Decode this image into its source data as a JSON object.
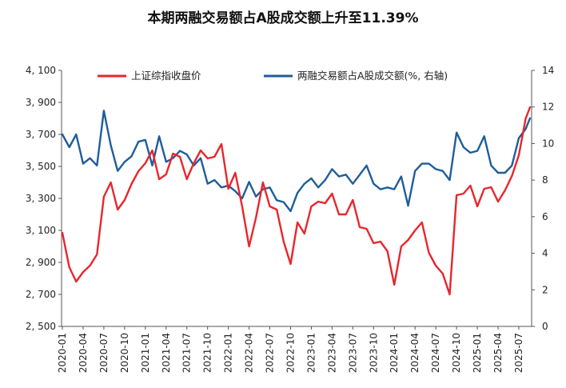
{
  "chart_data": {
    "type": "line",
    "title": "本期两融交易额占A股成交额上升至11.39%",
    "x_ticks": [
      "2020-01",
      "2020-04",
      "2020-07",
      "2020-10",
      "2021-01",
      "2021-04",
      "2021-07",
      "2021-10",
      "2022-01",
      "2022-04",
      "2022-07",
      "2022-10",
      "2023-01",
      "2023-04",
      "2023-07",
      "2023-10",
      "2024-01",
      "2024-04",
      "2024-07",
      "2024-10",
      "2025-01",
      "2025-04",
      "2025-07"
    ],
    "y_left": {
      "lim": [
        2500,
        4100
      ],
      "ticks": [
        "2, 500",
        "2, 700",
        "2, 900",
        "3, 100",
        "3, 300",
        "3, 500",
        "3, 700",
        "3, 900",
        "4, 100"
      ]
    },
    "y_right": {
      "lim": [
        0,
        14
      ],
      "ticks": [
        "0",
        "2",
        "4",
        "6",
        "8",
        "10",
        "12",
        "14"
      ]
    },
    "legend_position": "top",
    "series": [
      {
        "name": "上证综指收盘价",
        "axis": "left",
        "color": "#e8262c",
        "points": [
          [
            "2020-01",
            3085
          ],
          [
            "2020-02",
            2870
          ],
          [
            "2020-03",
            2780
          ],
          [
            "2020-04",
            2840
          ],
          [
            "2020-05",
            2880
          ],
          [
            "2020-06",
            2950
          ],
          [
            "2020-07",
            3310
          ],
          [
            "2020-08",
            3400
          ],
          [
            "2020-09",
            3230
          ],
          [
            "2020-10",
            3290
          ],
          [
            "2020-11",
            3390
          ],
          [
            "2020-12",
            3470
          ],
          [
            "2021-01",
            3520
          ],
          [
            "2021-02",
            3600
          ],
          [
            "2021-03",
            3420
          ],
          [
            "2021-04",
            3450
          ],
          [
            "2021-05",
            3580
          ],
          [
            "2021-06",
            3560
          ],
          [
            "2021-07",
            3420
          ],
          [
            "2021-08",
            3520
          ],
          [
            "2021-09",
            3600
          ],
          [
            "2021-10",
            3550
          ],
          [
            "2021-11",
            3560
          ],
          [
            "2021-12",
            3640
          ],
          [
            "2022-01",
            3360
          ],
          [
            "2022-02",
            3460
          ],
          [
            "2022-03",
            3250
          ],
          [
            "2022-04",
            3000
          ],
          [
            "2022-05",
            3180
          ],
          [
            "2022-06",
            3400
          ],
          [
            "2022-07",
            3250
          ],
          [
            "2022-08",
            3230
          ],
          [
            "2022-09",
            3030
          ],
          [
            "2022-10",
            2890
          ],
          [
            "2022-11",
            3150
          ],
          [
            "2022-12",
            3080
          ],
          [
            "2023-01",
            3250
          ],
          [
            "2023-02",
            3280
          ],
          [
            "2023-03",
            3270
          ],
          [
            "2023-04",
            3330
          ],
          [
            "2023-05",
            3200
          ],
          [
            "2023-06",
            3200
          ],
          [
            "2023-07",
            3290
          ],
          [
            "2023-08",
            3120
          ],
          [
            "2023-09",
            3110
          ],
          [
            "2023-10",
            3020
          ],
          [
            "2023-11",
            3030
          ],
          [
            "2023-12",
            2970
          ],
          [
            "2024-01",
            2760
          ],
          [
            "2024-02",
            3000
          ],
          [
            "2024-03",
            3040
          ],
          [
            "2024-04",
            3100
          ],
          [
            "2024-05",
            3150
          ],
          [
            "2024-06",
            2960
          ],
          [
            "2024-07",
            2880
          ],
          [
            "2024-08",
            2830
          ],
          [
            "2024-09",
            2700
          ],
          [
            "2024-10",
            3320
          ],
          [
            "2024-11",
            3330
          ],
          [
            "2024-12",
            3380
          ],
          [
            "2025-01",
            3250
          ],
          [
            "2025-02",
            3360
          ],
          [
            "2025-03",
            3370
          ],
          [
            "2025-04",
            3280
          ],
          [
            "2025-05",
            3350
          ],
          [
            "2025-06",
            3440
          ],
          [
            "2025-07",
            3570
          ],
          [
            "2025-08",
            3800
          ],
          [
            "2025-08-20",
            3870
          ]
        ]
      },
      {
        "name": "两融交易额占A股成交额(%, 右轴)",
        "axis": "right",
        "color": "#1f5d99",
        "points": [
          [
            "2020-01",
            10.5
          ],
          [
            "2020-02",
            9.8
          ],
          [
            "2020-03",
            10.5
          ],
          [
            "2020-04",
            8.9
          ],
          [
            "2020-05",
            9.2
          ],
          [
            "2020-06",
            8.8
          ],
          [
            "2020-07",
            11.8
          ],
          [
            "2020-08",
            9.9
          ],
          [
            "2020-09",
            8.5
          ],
          [
            "2020-10",
            9.0
          ],
          [
            "2020-11",
            9.3
          ],
          [
            "2020-12",
            10.1
          ],
          [
            "2021-01",
            10.2
          ],
          [
            "2021-02",
            8.8
          ],
          [
            "2021-03",
            10.4
          ],
          [
            "2021-04",
            9.0
          ],
          [
            "2021-05",
            9.2
          ],
          [
            "2021-06",
            9.6
          ],
          [
            "2021-07",
            9.4
          ],
          [
            "2021-08",
            8.8
          ],
          [
            "2021-09",
            9.2
          ],
          [
            "2021-10",
            7.8
          ],
          [
            "2021-11",
            8.0
          ],
          [
            "2021-12",
            7.6
          ],
          [
            "2022-01",
            7.7
          ],
          [
            "2022-02",
            7.4
          ],
          [
            "2022-03",
            7.0
          ],
          [
            "2022-04",
            7.9
          ],
          [
            "2022-05",
            7.1
          ],
          [
            "2022-06",
            7.5
          ],
          [
            "2022-07",
            7.6
          ],
          [
            "2022-08",
            6.9
          ],
          [
            "2022-09",
            6.8
          ],
          [
            "2022-10",
            6.3
          ],
          [
            "2022-11",
            7.3
          ],
          [
            "2022-12",
            7.8
          ],
          [
            "2023-01",
            8.1
          ],
          [
            "2023-02",
            7.6
          ],
          [
            "2023-03",
            8.0
          ],
          [
            "2023-04",
            8.6
          ],
          [
            "2023-05",
            8.2
          ],
          [
            "2023-06",
            8.3
          ],
          [
            "2023-07",
            7.8
          ],
          [
            "2023-08",
            8.3
          ],
          [
            "2023-09",
            8.8
          ],
          [
            "2023-10",
            7.8
          ],
          [
            "2023-11",
            7.5
          ],
          [
            "2023-12",
            7.6
          ],
          [
            "2024-01",
            7.5
          ],
          [
            "2024-02",
            8.2
          ],
          [
            "2024-03",
            6.6
          ],
          [
            "2024-04",
            8.5
          ],
          [
            "2024-05",
            8.9
          ],
          [
            "2024-06",
            8.9
          ],
          [
            "2024-07",
            8.6
          ],
          [
            "2024-08",
            8.5
          ],
          [
            "2024-09",
            8.0
          ],
          [
            "2024-10",
            10.6
          ],
          [
            "2024-11",
            9.8
          ],
          [
            "2024-12",
            9.5
          ],
          [
            "2025-01",
            9.6
          ],
          [
            "2025-02",
            10.4
          ],
          [
            "2025-03",
            8.8
          ],
          [
            "2025-04",
            8.4
          ],
          [
            "2025-05",
            8.4
          ],
          [
            "2025-06",
            8.8
          ],
          [
            "2025-07",
            10.3
          ],
          [
            "2025-08",
            10.8
          ],
          [
            "2025-08-20",
            11.39
          ]
        ]
      }
    ]
  }
}
